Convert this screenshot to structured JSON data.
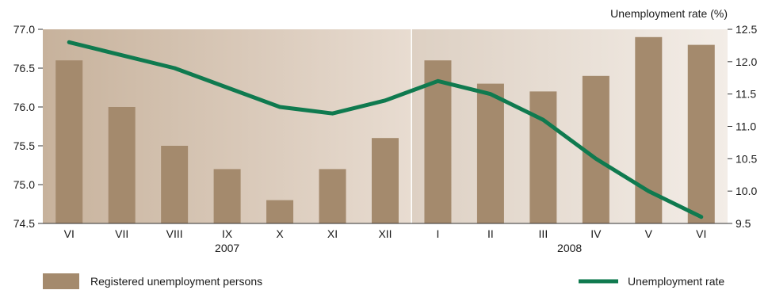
{
  "chart_data": {
    "type": "bar+line",
    "categories": [
      "VI",
      "VII",
      "VIII",
      "IX",
      "X",
      "XI",
      "XII",
      "I",
      "II",
      "III",
      "IV",
      "V",
      "VI"
    ],
    "year_groups": [
      {
        "label": "2007",
        "start": 0,
        "end": 6
      },
      {
        "label": "2008",
        "start": 7,
        "end": 12
      }
    ],
    "series": [
      {
        "name": "Registered unemployment persons",
        "type": "bar",
        "axis": "left",
        "color": "#a48a6d",
        "values": [
          76.6,
          76.0,
          75.5,
          75.2,
          74.8,
          75.2,
          75.6,
          76.6,
          76.3,
          76.2,
          76.4,
          76.9,
          76.8
        ]
      },
      {
        "name": "Unemployment rate",
        "type": "line",
        "axis": "right",
        "color": "#0f7a4f",
        "values": [
          12.3,
          12.1,
          11.9,
          11.6,
          11.3,
          11.2,
          11.4,
          11.7,
          11.5,
          11.1,
          10.5,
          10.0,
          9.6
        ]
      }
    ],
    "left_axis": {
      "range": [
        74.5,
        77.0
      ],
      "ticks": [
        "74.5",
        "75.0",
        "75.5",
        "76.0",
        "76.5",
        "77.0"
      ]
    },
    "right_axis": {
      "label": "Unemployment rate (%)",
      "range": [
        9.5,
        12.5
      ],
      "ticks": [
        "9.5",
        "10.0",
        "10.5",
        "11.0",
        "11.5",
        "12.0",
        "12.5"
      ]
    },
    "grid": false,
    "legend_position": "bottom",
    "background_colors": {
      "panel_2007_left": "#c7b29c",
      "panel_2007_right": "#e8dcd1",
      "panel_2008_left": "#ddd0c3",
      "panel_2008_right": "#f3ede7"
    }
  }
}
